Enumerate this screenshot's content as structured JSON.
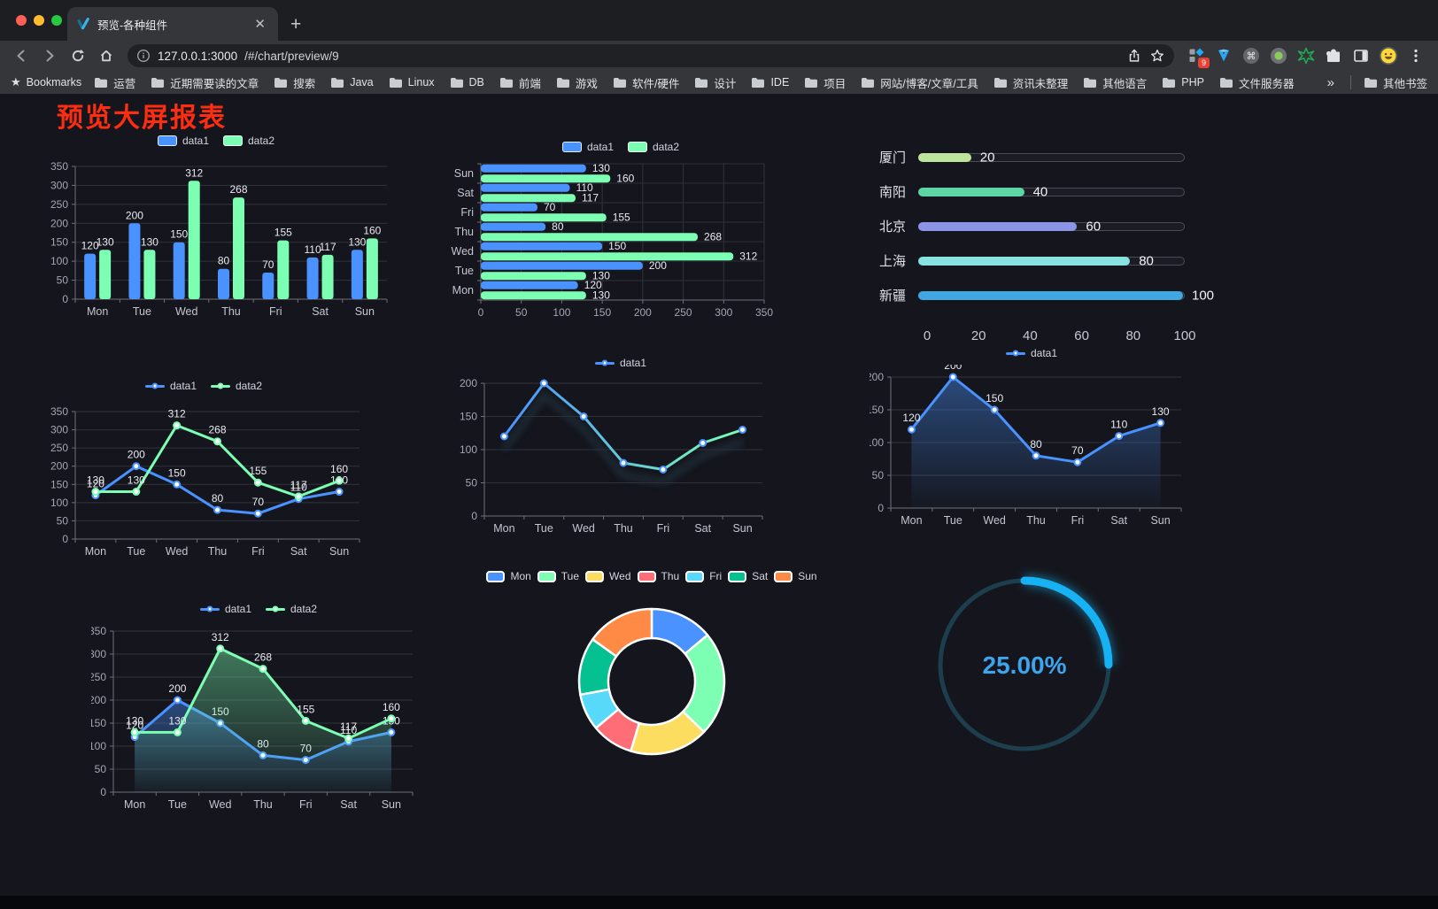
{
  "browser": {
    "tab_title": "预览-各种组件",
    "url_host": "127.0.0.1:3000",
    "url_path": "/#/chart/preview/9",
    "extension_badge": "9",
    "bookmarks_root_label": "Bookmarks",
    "bookmarks": [
      "运营",
      "近期需要读的文章",
      "搜索",
      "Java",
      "Linux",
      "DB",
      "前端",
      "游戏",
      "软件/硬件",
      "设计",
      "IDE",
      "项目",
      "网站/博客/文章/工具",
      "资讯未整理",
      "其他语言",
      "PHP",
      "文件服务器"
    ],
    "bookmarks_overflow": "»",
    "other_bookmarks": "其他书签"
  },
  "page": {
    "title": "预览大屏报表",
    "title_color": "#fd2d12"
  },
  "chart_data": [
    {
      "id": "bar-vertical",
      "type": "bar",
      "categories": [
        "Mon",
        "Tue",
        "Wed",
        "Thu",
        "Fri",
        "Sat",
        "Sun"
      ],
      "series": [
        {
          "name": "data1",
          "color": "#4992ff",
          "values": [
            120,
            200,
            150,
            80,
            70,
            110,
            130
          ]
        },
        {
          "name": "data2",
          "color": "#7cffb2",
          "values": [
            130,
            130,
            312,
            268,
            155,
            117,
            160
          ]
        }
      ],
      "ylim": [
        0,
        350
      ],
      "ytick_interval": 50,
      "grid": true,
      "data_labels": true,
      "legend_position": "top"
    },
    {
      "id": "bar-horizontal",
      "type": "bar",
      "orientation": "horizontal",
      "categories": [
        "Sun",
        "Sat",
        "Fri",
        "Thu",
        "Wed",
        "Tue",
        "Mon"
      ],
      "series": [
        {
          "name": "data1",
          "color": "#4992ff",
          "values": [
            130,
            110,
            70,
            80,
            150,
            200,
            120
          ]
        },
        {
          "name": "data2",
          "color": "#7cffb2",
          "values": [
            160,
            117,
            155,
            268,
            312,
            130,
            130
          ]
        }
      ],
      "xlim": [
        0,
        350
      ],
      "xtick_interval": 50,
      "grid": true,
      "data_labels": true,
      "legend_position": "top"
    },
    {
      "id": "progress-bars",
      "type": "bar",
      "orientation": "horizontal-progress",
      "categories": [
        "厦门",
        "南阳",
        "北京",
        "上海",
        "新疆"
      ],
      "values": [
        20,
        40,
        60,
        80,
        100
      ],
      "colors": [
        "#bde59c",
        "#5dd5a5",
        "#8c94e8",
        "#88e2df",
        "#41a7e3"
      ],
      "xlim": [
        0,
        100
      ],
      "xticks": [
        0,
        20,
        40,
        60,
        80,
        100
      ]
    },
    {
      "id": "line-dual",
      "type": "line",
      "categories": [
        "Mon",
        "Tue",
        "Wed",
        "Thu",
        "Fri",
        "Sat",
        "Sun"
      ],
      "series": [
        {
          "name": "data1",
          "color": "#4992ff",
          "values": [
            120,
            200,
            150,
            80,
            70,
            110,
            130
          ]
        },
        {
          "name": "data2",
          "color": "#7cffb2",
          "values": [
            130,
            130,
            312,
            268,
            155,
            117,
            160
          ]
        }
      ],
      "ylim": [
        0,
        350
      ],
      "ytick_interval": 50,
      "grid": true,
      "data_labels": true,
      "legend_position": "top"
    },
    {
      "id": "line-gradient",
      "type": "line",
      "categories": [
        "Mon",
        "Tue",
        "Wed",
        "Thu",
        "Fri",
        "Sat",
        "Sun"
      ],
      "series": [
        {
          "name": "data1",
          "color": "#4992ff",
          "values": [
            120,
            200,
            150,
            80,
            70,
            110,
            130
          ]
        }
      ],
      "line_gradient": [
        "#4992ff",
        "#7cffb2"
      ],
      "ylim": [
        0,
        200
      ],
      "ytick_interval": 50,
      "grid": true,
      "data_labels": false,
      "legend_position": "top"
    },
    {
      "id": "line-area",
      "type": "area",
      "categories": [
        "Mon",
        "Tue",
        "Wed",
        "Thu",
        "Fri",
        "Sat",
        "Sun"
      ],
      "series": [
        {
          "name": "data1",
          "color": "#4992ff",
          "values": [
            120,
            200,
            150,
            80,
            70,
            110,
            130
          ]
        }
      ],
      "ylim": [
        0,
        200
      ],
      "ytick_interval": 50,
      "grid": true,
      "data_labels": true,
      "legend_position": "top"
    },
    {
      "id": "line-dual-area",
      "type": "area",
      "categories": [
        "Mon",
        "Tue",
        "Wed",
        "Thu",
        "Fri",
        "Sat",
        "Sun"
      ],
      "series": [
        {
          "name": "data1",
          "color": "#4992ff",
          "values": [
            120,
            200,
            150,
            80,
            70,
            110,
            130
          ]
        },
        {
          "name": "data2",
          "color": "#7cffb2",
          "values": [
            130,
            130,
            312,
            268,
            155,
            117,
            160
          ]
        }
      ],
      "ylim": [
        0,
        350
      ],
      "ytick_interval": 50,
      "grid": true,
      "data_labels": true,
      "legend_position": "top"
    },
    {
      "id": "donut",
      "type": "pie",
      "labels": [
        "Mon",
        "Tue",
        "Wed",
        "Thu",
        "Fri",
        "Sat",
        "Sun"
      ],
      "values": [
        120,
        200,
        150,
        80,
        70,
        110,
        130
      ],
      "colors": [
        "#4992ff",
        "#7cffb2",
        "#fddd60",
        "#ff6e76",
        "#58d9f9",
        "#05c091",
        "#ff8a45"
      ],
      "inner_radius_ratio": 0.6,
      "legend_position": "top"
    },
    {
      "id": "gauge",
      "type": "gauge",
      "percent": 25,
      "value_label": "25.00%",
      "color": "#17b2f3",
      "text_color": "#3da4ee"
    }
  ]
}
